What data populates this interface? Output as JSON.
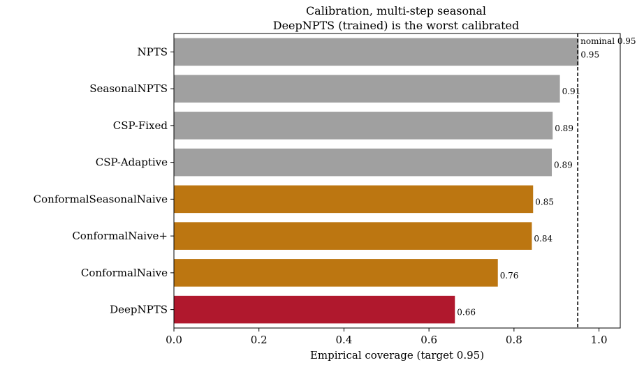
{
  "chart_data": {
    "type": "bar",
    "orientation": "horizontal",
    "title": "Calibration, multi-step seasonal",
    "subtitle": "DeepNPTS (trained) is the worst calibrated",
    "xlabel": "Empirical coverage (target 0.95)",
    "ylabel": "",
    "xlim": [
      0,
      1.05
    ],
    "xticks": [
      "0.0",
      "0.2",
      "0.4",
      "0.6",
      "0.8",
      "1.0"
    ],
    "categories": [
      "NPTS",
      "SeasonalNPTS",
      "CSP-Fixed",
      "CSP-Adaptive",
      "ConformalSeasonalNaive",
      "ConformalNaive+",
      "ConformalNaive",
      "DeepNPTS"
    ],
    "values": [
      0.952,
      0.908,
      0.891,
      0.889,
      0.845,
      0.842,
      0.762,
      0.661
    ],
    "value_labels": [
      "0.95",
      "0.91",
      "0.89",
      "0.89",
      "0.85",
      "0.84",
      "0.76",
      "0.66"
    ],
    "colors": [
      "#a0a0a0",
      "#a0a0a0",
      "#a0a0a0",
      "#a0a0a0",
      "#bc7611",
      "#bc7611",
      "#bc7611",
      "#b0182d"
    ],
    "reference_line": {
      "value": 0.95,
      "label": "nominal 0.95",
      "style": "dashed"
    },
    "grid": false
  }
}
